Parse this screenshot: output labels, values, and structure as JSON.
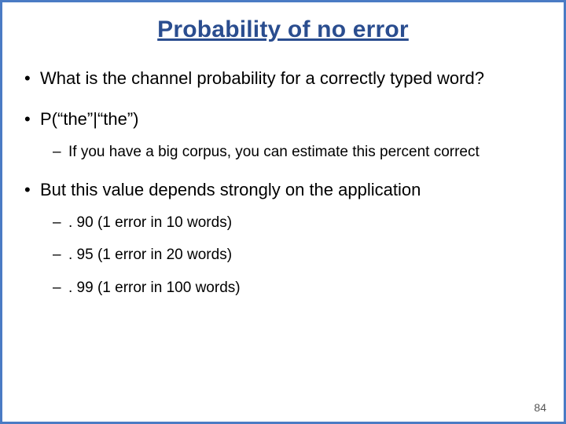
{
  "slide": {
    "title": "Probability of no error",
    "title_color": "#2a4d8f",
    "border_color": "#4a7bc4",
    "background_color": "#ffffff",
    "text_color": "#000000",
    "title_fontsize": 30,
    "body_fontsize_l1": 22,
    "body_fontsize_l2": 19,
    "groups": [
      {
        "bullet": "What is the channel probability for a correctly typed word?",
        "subs": []
      },
      {
        "bullet": "P(“the”|“the”)",
        "subs": [
          "If you have a big corpus, you can estimate this percent correct"
        ]
      },
      {
        "bullet": "But this value depends strongly on the application",
        "subs": [
          ". 90 (1 error in 10 words)",
          ". 95 (1 error in 20 words)",
          ". 99 (1 error in 100 words)"
        ]
      }
    ],
    "page_number": "84"
  }
}
